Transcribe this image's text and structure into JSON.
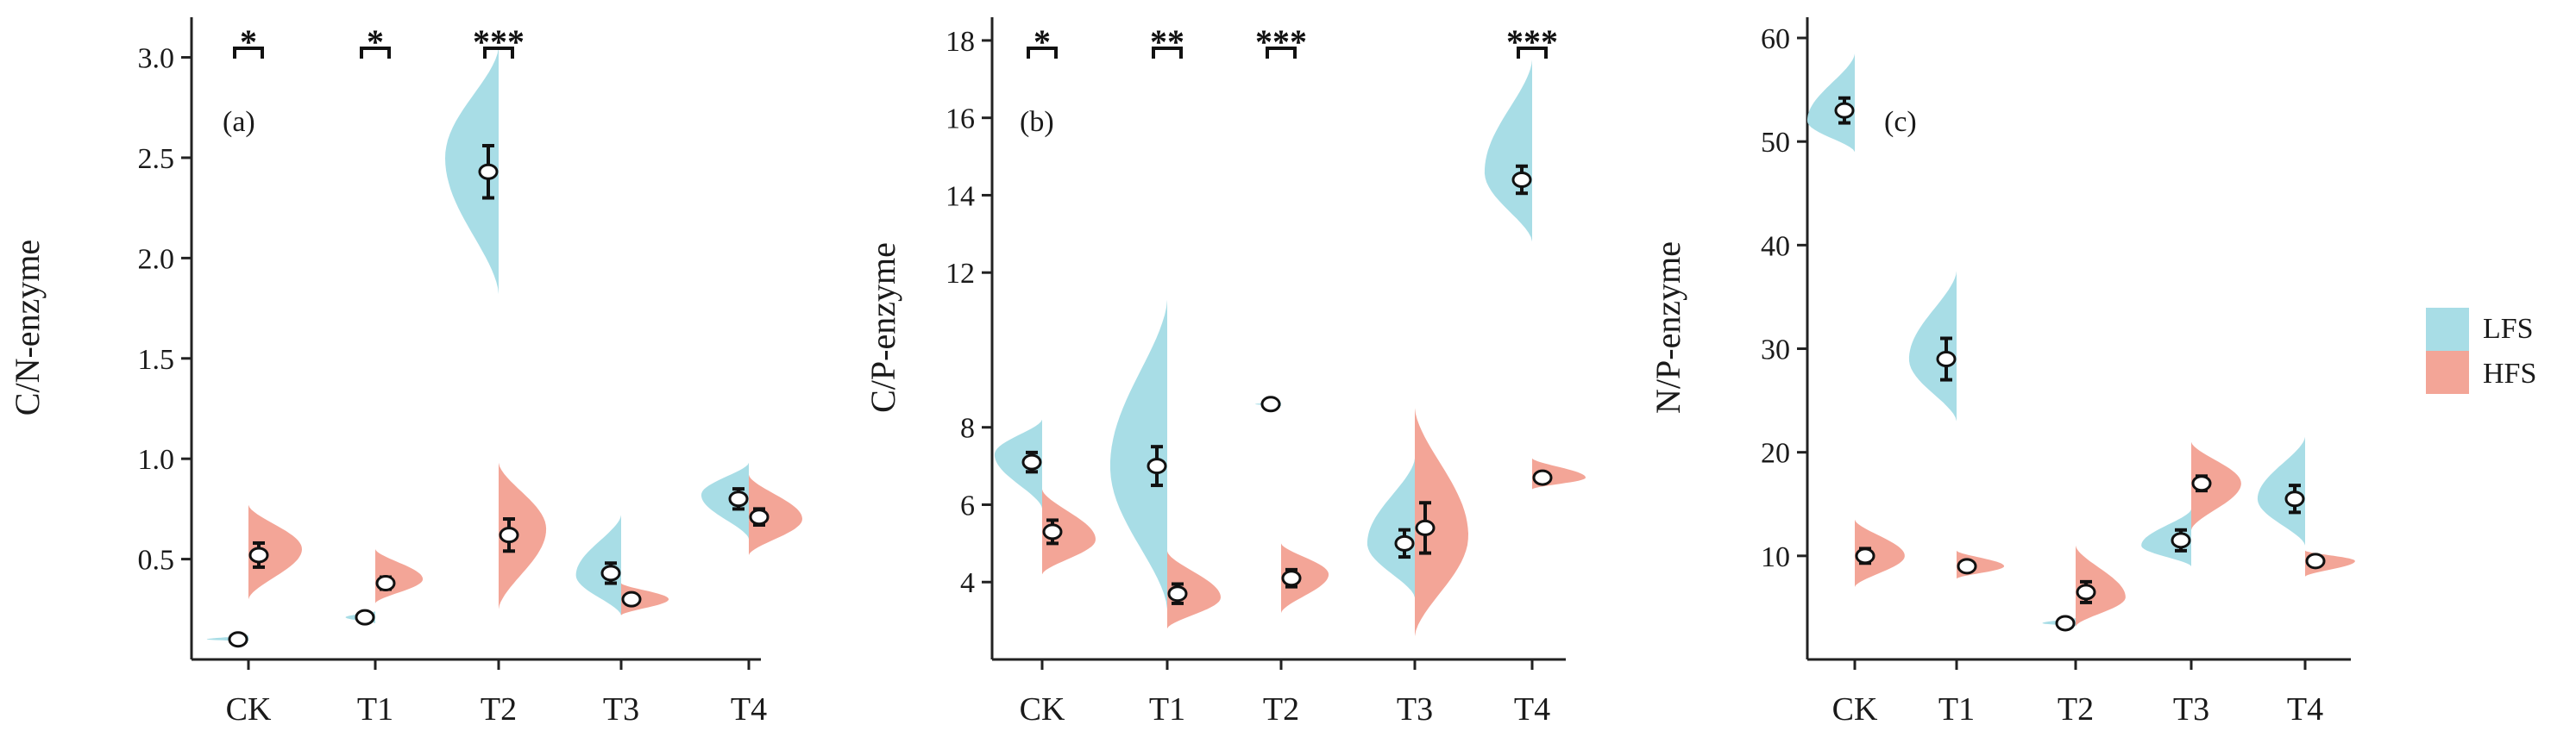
{
  "colors": {
    "LFS": "#a8dde6",
    "HFS": "#f3a597",
    "axis": "#222222"
  },
  "legend": [
    {
      "key": "LFS",
      "label": "LFS",
      "color": "#a8dde6"
    },
    {
      "key": "HFS",
      "label": "HFS",
      "color": "#f3a597"
    }
  ],
  "chart_data": [
    {
      "type": "violin",
      "panel": "(a)",
      "ylabel": "C/N-enzyme",
      "ylim": [
        0.0,
        3.2
      ],
      "yticks": [
        0.5,
        1.0,
        1.5,
        2.0,
        2.5,
        3.0
      ],
      "ytick_labels": [
        "0.5",
        "1.0",
        "1.5",
        "2.0",
        "2.5",
        "3.0"
      ],
      "categories": [
        "CK",
        "T1",
        "T2",
        "T3",
        "T4"
      ],
      "significance": [
        "*",
        "*",
        "***",
        "",
        ""
      ],
      "series": [
        {
          "name": "LFS",
          "values": [
            {
              "mean": 0.1,
              "err": 0.01,
              "lo": 0.09,
              "hi": 0.12,
              "peak": 0.1,
              "width": 0.35
            },
            {
              "mean": 0.21,
              "err": 0.015,
              "lo": 0.18,
              "hi": 0.24,
              "peak": 0.21,
              "width": 0.25
            },
            {
              "mean": 2.43,
              "err": 0.13,
              "lo": 1.82,
              "hi": 3.05,
              "peak": 2.5,
              "width": 0.45
            },
            {
              "mean": 0.43,
              "err": 0.05,
              "lo": 0.22,
              "hi": 0.72,
              "peak": 0.42,
              "width": 0.38
            },
            {
              "mean": 0.8,
              "err": 0.05,
              "lo": 0.6,
              "hi": 0.98,
              "peak": 0.82,
              "width": 0.4
            }
          ]
        },
        {
          "name": "HFS",
          "values": [
            {
              "mean": 0.52,
              "err": 0.06,
              "lo": 0.3,
              "hi": 0.77,
              "peak": 0.55,
              "width": 0.45
            },
            {
              "mean": 0.38,
              "err": 0.03,
              "lo": 0.28,
              "hi": 0.55,
              "peak": 0.4,
              "width": 0.4
            },
            {
              "mean": 0.62,
              "err": 0.08,
              "lo": 0.25,
              "hi": 0.98,
              "peak": 0.65,
              "width": 0.4
            },
            {
              "mean": 0.3,
              "err": 0.02,
              "lo": 0.22,
              "hi": 0.38,
              "peak": 0.3,
              "width": 0.4
            },
            {
              "mean": 0.71,
              "err": 0.04,
              "lo": 0.52,
              "hi": 0.92,
              "peak": 0.7,
              "width": 0.45
            }
          ]
        }
      ]
    },
    {
      "type": "violin",
      "panel": "(b)",
      "ylabel": "C/P-enzyme",
      "ylim": [
        2.0,
        18.6
      ],
      "yticks": [
        4,
        6,
        8,
        12,
        14,
        16,
        18
      ],
      "ytick_labels": [
        "4",
        "6",
        "8",
        "12",
        "14",
        "16",
        "18"
      ],
      "categories": [
        "CK",
        "T1",
        "T2",
        "T3",
        "T4"
      ],
      "significance": [
        "*",
        "**",
        "***",
        "",
        "***"
      ],
      "series": [
        {
          "name": "LFS",
          "values": [
            {
              "mean": 7.1,
              "err": 0.25,
              "lo": 5.9,
              "hi": 8.2,
              "peak": 7.3,
              "width": 0.4
            },
            {
              "mean": 7.0,
              "err": 0.5,
              "lo": 3.3,
              "hi": 11.3,
              "peak": 7.0,
              "width": 0.48
            },
            {
              "mean": 8.6,
              "err": 0.03,
              "lo": 8.55,
              "hi": 8.65,
              "peak": 8.6,
              "width": 0.22
            },
            {
              "mean": 5.0,
              "err": 0.35,
              "lo": 3.6,
              "hi": 7.2,
              "peak": 5.0,
              "width": 0.4
            },
            {
              "mean": 14.4,
              "err": 0.35,
              "lo": 12.8,
              "hi": 17.5,
              "peak": 14.6,
              "width": 0.4
            }
          ]
        },
        {
          "name": "HFS",
          "values": [
            {
              "mean": 5.3,
              "err": 0.3,
              "lo": 4.2,
              "hi": 6.4,
              "peak": 5.1,
              "width": 0.45
            },
            {
              "mean": 3.7,
              "err": 0.25,
              "lo": 2.8,
              "hi": 4.8,
              "peak": 3.6,
              "width": 0.45
            },
            {
              "mean": 4.1,
              "err": 0.22,
              "lo": 3.2,
              "hi": 5.0,
              "peak": 4.2,
              "width": 0.4
            },
            {
              "mean": 5.4,
              "err": 0.65,
              "lo": 2.6,
              "hi": 8.5,
              "peak": 5.2,
              "width": 0.45
            },
            {
              "mean": 6.7,
              "err": 0.08,
              "lo": 6.4,
              "hi": 7.2,
              "peak": 6.7,
              "width": 0.45
            }
          ]
        }
      ]
    },
    {
      "type": "violin",
      "panel": "(c)",
      "ylabel": "N/P-enzyme",
      "ylim": [
        0.0,
        62.0
      ],
      "yticks": [
        10,
        20,
        30,
        40,
        50,
        60
      ],
      "ytick_labels": [
        "10",
        "20",
        "30",
        "40",
        "50",
        "60"
      ],
      "categories": [
        "CK",
        "T1",
        "T2",
        "T3",
        "T4"
      ],
      "significance": [
        "",
        "",
        "",
        "",
        ""
      ],
      "series": [
        {
          "name": "LFS",
          "values": [
            {
              "mean": 53.0,
              "err": 1.2,
              "lo": 49.0,
              "hi": 58.5,
              "peak": 52.0,
              "width": 0.4
            },
            {
              "mean": 29.0,
              "err": 2.0,
              "lo": 23.0,
              "hi": 37.5,
              "peak": 29.0,
              "width": 0.4
            },
            {
              "mean": 3.5,
              "err": 0.2,
              "lo": 3.2,
              "hi": 4.0,
              "peak": 3.5,
              "width": 0.28
            },
            {
              "mean": 11.5,
              "err": 1.0,
              "lo": 9.0,
              "hi": 14.5,
              "peak": 11.0,
              "width": 0.42
            },
            {
              "mean": 15.5,
              "err": 1.3,
              "lo": 11.0,
              "hi": 21.5,
              "peak": 15.5,
              "width": 0.4
            }
          ]
        },
        {
          "name": "HFS",
          "values": [
            {
              "mean": 10.0,
              "err": 0.7,
              "lo": 7.0,
              "hi": 13.5,
              "peak": 10.0,
              "width": 0.42
            },
            {
              "mean": 9.0,
              "err": 0.4,
              "lo": 7.8,
              "hi": 10.5,
              "peak": 9.0,
              "width": 0.4
            },
            {
              "mean": 6.5,
              "err": 1.0,
              "lo": 3.2,
              "hi": 11.0,
              "peak": 6.0,
              "width": 0.42
            },
            {
              "mean": 17.0,
              "err": 0.7,
              "lo": 12.5,
              "hi": 21.0,
              "peak": 17.0,
              "width": 0.42
            },
            {
              "mean": 9.5,
              "err": 0.3,
              "lo": 8.0,
              "hi": 10.5,
              "peak": 9.5,
              "width": 0.42
            }
          ]
        }
      ]
    }
  ]
}
